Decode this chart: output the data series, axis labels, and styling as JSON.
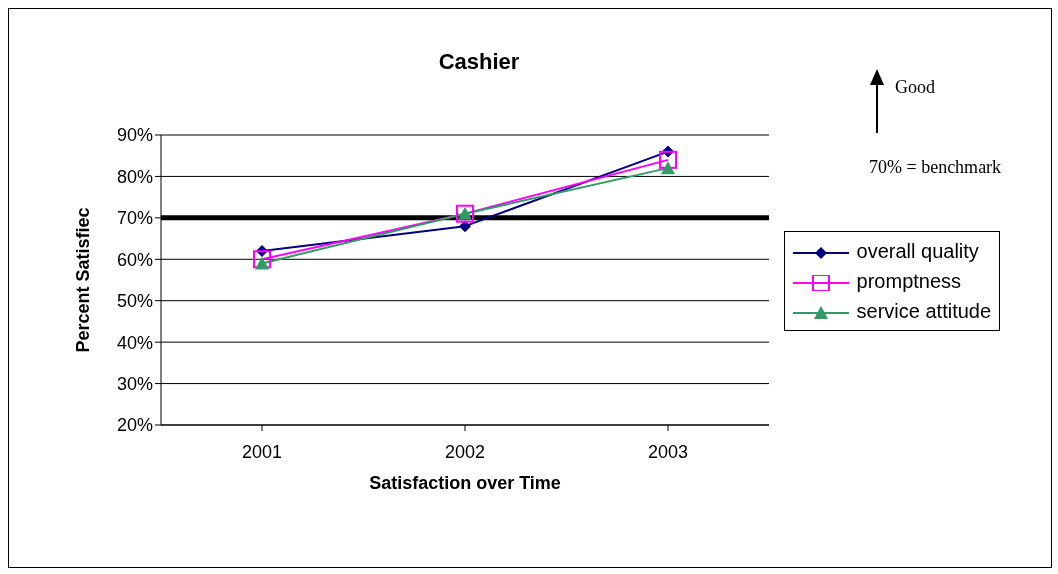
{
  "chart_data": {
    "type": "line",
    "title": "Cashier",
    "xlabel": "Satisfaction over Time",
    "ylabel": "Percent Satisfiec",
    "categories": [
      "2001",
      "2002",
      "2003"
    ],
    "series": [
      {
        "name": "overall quality",
        "color": "#000080",
        "marker": "diamond",
        "values": [
          62,
          68,
          86
        ]
      },
      {
        "name": "promptness",
        "color": "#ff00ff",
        "marker": "square",
        "values": [
          60,
          71,
          84
        ]
      },
      {
        "name": "service attitude",
        "color": "#339966",
        "marker": "triangle",
        "values": [
          59,
          71,
          82
        ]
      }
    ],
    "ylim": [
      20,
      90
    ],
    "yticks": [
      {
        "value": 20,
        "label": "20%"
      },
      {
        "value": 30,
        "label": "30%"
      },
      {
        "value": 40,
        "label": "40%"
      },
      {
        "value": 50,
        "label": "50%"
      },
      {
        "value": 60,
        "label": "60%"
      },
      {
        "value": 70,
        "label": "70%"
      },
      {
        "value": 80,
        "label": "80%"
      },
      {
        "value": 90,
        "label": "90%"
      }
    ],
    "ref_lines": [
      {
        "axis": "y",
        "value": 70,
        "color": "#000000"
      }
    ],
    "annotations": [
      "Good",
      "70% = benchmark"
    ],
    "grid": "y",
    "legend": "right"
  }
}
